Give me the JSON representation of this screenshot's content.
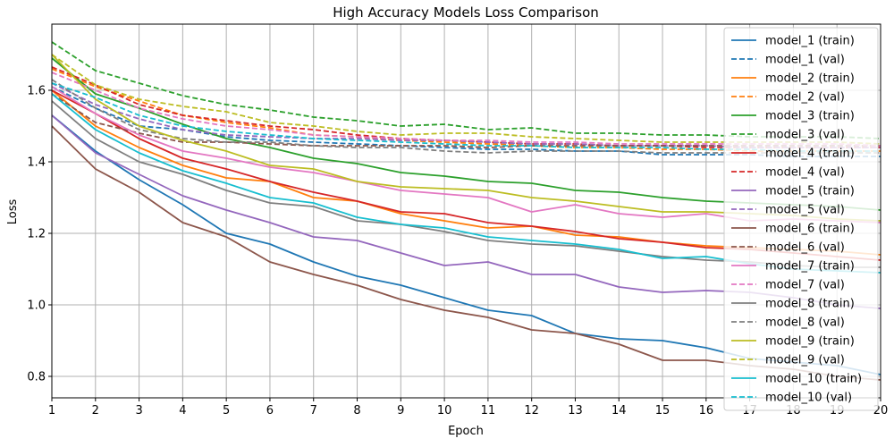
{
  "chart_data": {
    "type": "line",
    "title": "High Accuracy Models Loss Comparison",
    "xlabel": "Epoch",
    "ylabel": "Loss",
    "xlim": [
      1,
      20
    ],
    "ylim": [
      0.74,
      1.785
    ],
    "xticks": [
      1,
      2,
      3,
      4,
      5,
      6,
      7,
      8,
      9,
      10,
      11,
      12,
      13,
      14,
      15,
      16,
      17,
      18,
      19,
      20
    ],
    "yticks": [
      0.8,
      1.0,
      1.2,
      1.4,
      1.6
    ],
    "grid": true,
    "legend_position": "top-right",
    "x": [
      1,
      2,
      3,
      4,
      5,
      6,
      7,
      8,
      9,
      10,
      11,
      12,
      13,
      14,
      15,
      16,
      17,
      18,
      19,
      20
    ],
    "series": [
      {
        "name": "model_1 (train)",
        "color": "#1f77b4",
        "dash": "solid",
        "values": [
          1.53,
          1.43,
          1.35,
          1.28,
          1.2,
          1.17,
          1.12,
          1.08,
          1.055,
          1.02,
          0.985,
          0.97,
          0.92,
          0.905,
          0.9,
          0.88,
          0.85,
          0.84,
          0.83,
          0.805
        ]
      },
      {
        "name": "model_1 (val)",
        "color": "#1f77b4",
        "dash": "dashed",
        "values": [
          1.61,
          1.55,
          1.5,
          1.49,
          1.47,
          1.46,
          1.455,
          1.45,
          1.445,
          1.44,
          1.435,
          1.435,
          1.43,
          1.43,
          1.42,
          1.42,
          1.42,
          1.415,
          1.415,
          1.415
        ]
      },
      {
        "name": "model_2 (train)",
        "color": "#ff7f0e",
        "dash": "solid",
        "values": [
          1.6,
          1.5,
          1.44,
          1.39,
          1.355,
          1.345,
          1.3,
          1.29,
          1.255,
          1.235,
          1.215,
          1.22,
          1.195,
          1.19,
          1.175,
          1.165,
          1.16,
          1.155,
          1.15,
          1.14
        ]
      },
      {
        "name": "model_2 (val)",
        "color": "#ff7f0e",
        "dash": "dashed",
        "values": [
          1.66,
          1.61,
          1.57,
          1.53,
          1.51,
          1.495,
          1.475,
          1.47,
          1.46,
          1.455,
          1.45,
          1.445,
          1.44,
          1.44,
          1.435,
          1.435,
          1.43,
          1.43,
          1.43,
          1.43
        ]
      },
      {
        "name": "model_3 (train)",
        "color": "#2ca02c",
        "dash": "solid",
        "values": [
          1.69,
          1.59,
          1.55,
          1.505,
          1.465,
          1.44,
          1.41,
          1.395,
          1.37,
          1.36,
          1.345,
          1.34,
          1.32,
          1.315,
          1.3,
          1.29,
          1.285,
          1.28,
          1.275,
          1.265
        ]
      },
      {
        "name": "model_3 (val)",
        "color": "#2ca02c",
        "dash": "dashed",
        "values": [
          1.735,
          1.655,
          1.62,
          1.585,
          1.56,
          1.545,
          1.525,
          1.515,
          1.5,
          1.505,
          1.49,
          1.495,
          1.48,
          1.48,
          1.475,
          1.475,
          1.47,
          1.47,
          1.47,
          1.465
        ]
      },
      {
        "name": "model_4 (train)",
        "color": "#d62728",
        "dash": "solid",
        "values": [
          1.6,
          1.535,
          1.465,
          1.41,
          1.38,
          1.345,
          1.315,
          1.29,
          1.26,
          1.255,
          1.23,
          1.22,
          1.205,
          1.185,
          1.175,
          1.16,
          1.155,
          1.145,
          1.135,
          1.125
        ]
      },
      {
        "name": "model_4 (val)",
        "color": "#d62728",
        "dash": "dashed",
        "values": [
          1.665,
          1.615,
          1.56,
          1.53,
          1.515,
          1.5,
          1.49,
          1.475,
          1.465,
          1.46,
          1.455,
          1.45,
          1.45,
          1.445,
          1.445,
          1.44,
          1.44,
          1.44,
          1.44,
          1.44
        ]
      },
      {
        "name": "model_5 (train)",
        "color": "#9467bd",
        "dash": "solid",
        "values": [
          1.53,
          1.425,
          1.365,
          1.305,
          1.265,
          1.23,
          1.19,
          1.18,
          1.145,
          1.11,
          1.12,
          1.085,
          1.085,
          1.05,
          1.035,
          1.04,
          1.035,
          1.02,
          1.0,
          0.99
        ]
      },
      {
        "name": "model_5 (val)",
        "color": "#9467bd",
        "dash": "dashed",
        "values": [
          1.62,
          1.56,
          1.52,
          1.49,
          1.475,
          1.47,
          1.465,
          1.465,
          1.46,
          1.46,
          1.455,
          1.45,
          1.45,
          1.445,
          1.445,
          1.445,
          1.44,
          1.44,
          1.44,
          1.44
        ]
      },
      {
        "name": "model_6 (train)",
        "color": "#8c564b",
        "dash": "solid",
        "values": [
          1.5,
          1.38,
          1.315,
          1.23,
          1.19,
          1.12,
          1.085,
          1.055,
          1.015,
          0.985,
          0.965,
          0.93,
          0.92,
          0.89,
          0.845,
          0.845,
          0.83,
          0.82,
          0.8,
          0.79
        ]
      },
      {
        "name": "model_6 (val)",
        "color": "#8c564b",
        "dash": "dashed",
        "values": [
          1.59,
          1.51,
          1.48,
          1.455,
          1.455,
          1.45,
          1.445,
          1.445,
          1.445,
          1.445,
          1.44,
          1.445,
          1.445,
          1.445,
          1.445,
          1.445,
          1.445,
          1.445,
          1.445,
          1.445
        ]
      },
      {
        "name": "model_7 (train)",
        "color": "#e377c2",
        "dash": "solid",
        "values": [
          1.61,
          1.535,
          1.475,
          1.43,
          1.41,
          1.385,
          1.37,
          1.345,
          1.32,
          1.31,
          1.3,
          1.26,
          1.28,
          1.255,
          1.245,
          1.255,
          1.235,
          1.24,
          1.235,
          1.23
        ]
      },
      {
        "name": "model_7 (val)",
        "color": "#e377c2",
        "dash": "dashed",
        "values": [
          1.65,
          1.6,
          1.55,
          1.52,
          1.5,
          1.49,
          1.475,
          1.47,
          1.465,
          1.46,
          1.46,
          1.455,
          1.455,
          1.45,
          1.45,
          1.45,
          1.45,
          1.45,
          1.45,
          1.445
        ]
      },
      {
        "name": "model_8 (train)",
        "color": "#7f7f7f",
        "dash": "solid",
        "values": [
          1.57,
          1.465,
          1.4,
          1.365,
          1.32,
          1.285,
          1.275,
          1.235,
          1.225,
          1.205,
          1.18,
          1.17,
          1.165,
          1.15,
          1.135,
          1.125,
          1.12,
          1.11,
          1.105,
          1.105
        ]
      },
      {
        "name": "model_8 (val)",
        "color": "#7f7f7f",
        "dash": "dashed",
        "values": [
          1.63,
          1.55,
          1.49,
          1.465,
          1.455,
          1.455,
          1.445,
          1.44,
          1.44,
          1.43,
          1.425,
          1.43,
          1.43,
          1.43,
          1.425,
          1.425,
          1.425,
          1.425,
          1.425,
          1.425
        ]
      },
      {
        "name": "model_9 (train)",
        "color": "#bcbd22",
        "dash": "solid",
        "values": [
          1.7,
          1.575,
          1.5,
          1.46,
          1.43,
          1.39,
          1.38,
          1.345,
          1.33,
          1.325,
          1.32,
          1.3,
          1.29,
          1.275,
          1.26,
          1.26,
          1.255,
          1.25,
          1.24,
          1.235
        ]
      },
      {
        "name": "model_9 (val)",
        "color": "#bcbd22",
        "dash": "dashed",
        "values": [
          1.7,
          1.615,
          1.575,
          1.555,
          1.54,
          1.51,
          1.5,
          1.485,
          1.475,
          1.48,
          1.48,
          1.47,
          1.465,
          1.46,
          1.455,
          1.455,
          1.455,
          1.455,
          1.455,
          1.45
        ]
      },
      {
        "name": "model_10 (train)",
        "color": "#17becf",
        "dash": "solid",
        "values": [
          1.59,
          1.49,
          1.425,
          1.375,
          1.34,
          1.3,
          1.285,
          1.245,
          1.225,
          1.215,
          1.19,
          1.18,
          1.17,
          1.155,
          1.13,
          1.135,
          1.115,
          1.1,
          1.095,
          1.09
        ]
      },
      {
        "name": "model_10 (val)",
        "color": "#17becf",
        "dash": "dashed",
        "values": [
          1.62,
          1.58,
          1.53,
          1.5,
          1.485,
          1.475,
          1.465,
          1.46,
          1.455,
          1.45,
          1.445,
          1.445,
          1.44,
          1.44,
          1.44,
          1.435,
          1.435,
          1.43,
          1.43,
          1.43
        ]
      }
    ]
  }
}
